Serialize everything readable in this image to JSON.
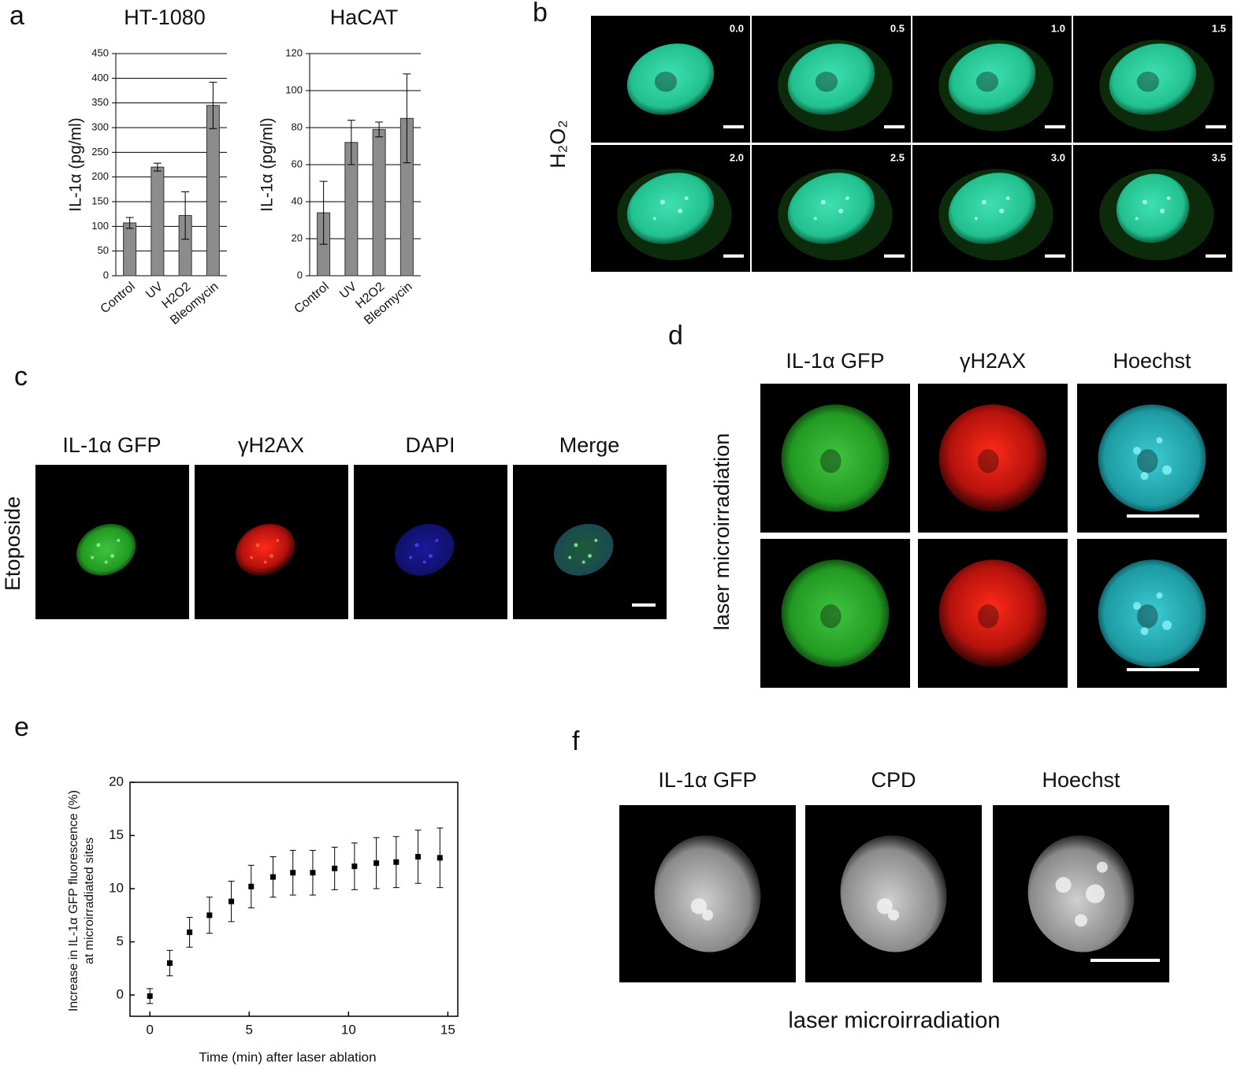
{
  "panel_letters": [
    "a",
    "b",
    "c",
    "d",
    "e",
    "f"
  ],
  "chart_data": [
    {
      "type": "bar",
      "title": "HT-1080",
      "y_label": "IL-1α (pg/ml)",
      "categories": [
        "Control",
        "UV",
        "H2O2",
        "Bleomycin"
      ],
      "values": [
        107,
        220,
        122,
        345
      ],
      "errors": [
        11,
        8,
        48,
        47
      ],
      "color": "#8c8c8c",
      "ylim": [
        0,
        450
      ],
      "yticks": [
        0,
        50,
        100,
        150,
        200,
        250,
        300,
        350,
        400,
        450
      ],
      "grid": true
    },
    {
      "type": "bar",
      "title": "HaCAT",
      "y_label": "IL-1α (pg/ml)",
      "categories": [
        "Control",
        "UV",
        "H2O2",
        "Bleomycin"
      ],
      "values": [
        34,
        72,
        79,
        85
      ],
      "errors": [
        17,
        12,
        4,
        24
      ],
      "color": "#8c8c8c",
      "ylim": [
        0,
        120
      ],
      "yticks": [
        0,
        20,
        40,
        60,
        80,
        100,
        120
      ],
      "grid": true
    },
    {
      "type": "scatter",
      "x_label": "Time (min) after laser ablation",
      "y_label": [
        "Increase in IL-1α GFP fluorescence (%)",
        "at microirradiated sites"
      ],
      "x": [
        0,
        1,
        2,
        3,
        4.1,
        5.1,
        6.2,
        7.2,
        8.2,
        9.3,
        10.3,
        11.4,
        12.4,
        13.5,
        14.6
      ],
      "values": [
        -0.1,
        3.0,
        5.9,
        7.5,
        8.8,
        10.2,
        11.1,
        11.5,
        11.5,
        11.9,
        12.1,
        12.4,
        12.5,
        13.0,
        12.9
      ],
      "errors": [
        0.7,
        1.2,
        1.4,
        1.7,
        1.9,
        2.0,
        1.9,
        2.1,
        2.1,
        2.0,
        2.2,
        2.4,
        2.4,
        2.5,
        2.8
      ],
      "color": "#000000",
      "xlim": [
        -1,
        15.5
      ],
      "ylim": [
        -2,
        20
      ],
      "xticks": [
        0,
        5,
        10,
        15
      ],
      "yticks": [
        0,
        5,
        10,
        15,
        20
      ],
      "grid": false
    }
  ],
  "panel_b": {
    "row_label": "H₂O₂",
    "time_labels": [
      "0.0",
      "0.5",
      "1.0",
      "1.5",
      "2.0",
      "2.5",
      "3.0",
      "3.5"
    ]
  },
  "panel_c": {
    "row_label": "Etoposide",
    "columns": [
      "IL-1α GFP",
      "γH2AX",
      "DAPI",
      "Merge"
    ]
  },
  "panel_d": {
    "row_label": "laser microirradiation",
    "columns": [
      "IL-1α GFP",
      "γH2AX",
      "Hoechst"
    ]
  },
  "panel_f": {
    "caption": "laser microirradiation",
    "columns": [
      "IL-1α GFP",
      "CPD",
      "Hoechst"
    ]
  }
}
